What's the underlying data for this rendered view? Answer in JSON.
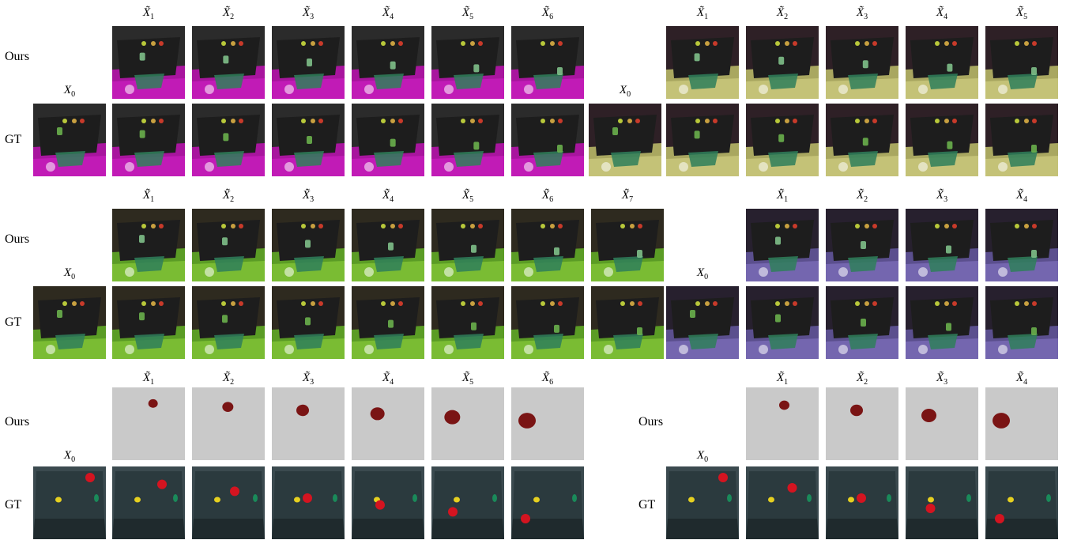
{
  "panels": [
    {
      "id": "p1",
      "ours_label": "Ours",
      "gt_label": "GT",
      "x0_label": "X",
      "x0_sub": "0",
      "pred_label": "X̃",
      "pred_subs": [
        "1",
        "2",
        "3",
        "4",
        "5",
        "6"
      ],
      "ours_scene": "dark-table-magenta-floor",
      "gt_scene": "dark-table-magenta-floor"
    },
    {
      "id": "p2",
      "ours_label": "",
      "gt_label": "",
      "x0_label": "X",
      "x0_sub": "0",
      "pred_label": "X̃",
      "pred_subs": [
        "1",
        "2",
        "3",
        "4",
        "5"
      ],
      "ours_scene": "dark-table-yellow-floor",
      "gt_scene": "dark-table-yellow-floor"
    },
    {
      "id": "p3",
      "ours_label": "Ours",
      "gt_label": "GT",
      "x0_label": "X",
      "x0_sub": "0",
      "pred_label": "X̃",
      "pred_subs": [
        "1",
        "2",
        "3",
        "4",
        "5",
        "6",
        "7"
      ],
      "ours_scene": "dark-table-green-floor",
      "gt_scene": "dark-table-green-floor"
    },
    {
      "id": "p4",
      "ours_label": "",
      "gt_label": "",
      "x0_label": "X",
      "x0_sub": "0",
      "pred_label": "X̃",
      "pred_subs": [
        "1",
        "2",
        "3",
        "4"
      ],
      "ours_scene": "dark-table-violet-floor",
      "gt_scene": "dark-table-violet-floor"
    },
    {
      "id": "p5",
      "ours_label": "Ours",
      "gt_label": "GT",
      "x0_label": "X",
      "x0_sub": "0",
      "pred_label": "X̃",
      "pred_subs": [
        "1",
        "2",
        "3",
        "4",
        "5",
        "6"
      ],
      "ours_scene": "gray-background-red-object",
      "gt_scene": "real-table-objects"
    },
    {
      "id": "p6",
      "ours_label": "Ours",
      "gt_label": "GT",
      "x0_label": "X",
      "x0_sub": "0",
      "pred_label": "X̃",
      "pred_subs": [
        "1",
        "2",
        "3",
        "4"
      ],
      "ours_scene": "gray-background-red-object",
      "gt_scene": "real-table-objects"
    }
  ]
}
